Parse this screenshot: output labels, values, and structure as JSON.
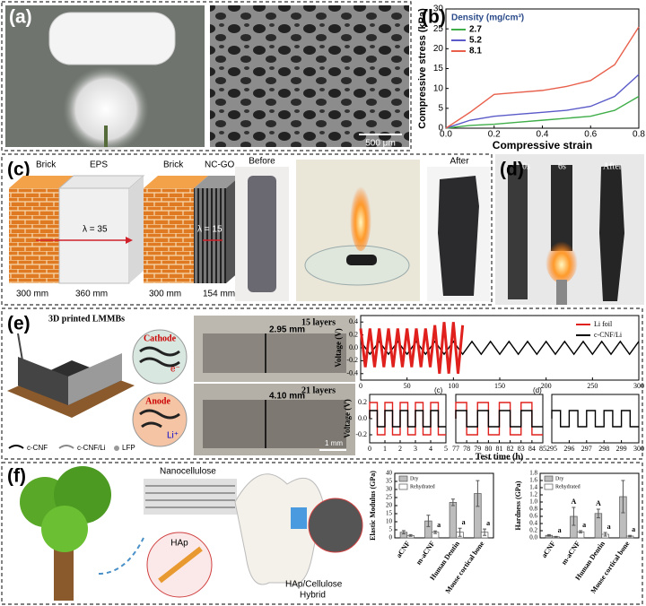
{
  "panels": {
    "a": {
      "label": "(a)",
      "scale_bar": "500 μm"
    },
    "b": {
      "label": "(b)"
    },
    "c": {
      "label": "(c)",
      "brick_1": "Brick",
      "eps": "EPS",
      "lambda_1": "λ = 35",
      "width_1a": "300 mm",
      "width_1b": "360 mm",
      "brick_2": "Brick",
      "ncgo": "NC-GO",
      "lambda_2": "λ = 15",
      "width_2a": "300 mm",
      "width_2b": "154 mm",
      "before": "Before",
      "after": "After"
    },
    "d": {
      "label": "(d)",
      "t0": "0s",
      "t1": "6s",
      "after": "After"
    },
    "e": {
      "label": "(e)",
      "title": "3D printed LMMBs",
      "cathode": "Cathode",
      "anode": "Anode",
      "electron": "e⁻",
      "li_ion": "Li⁺",
      "legend": [
        "c-CNF",
        "c-CNF/Li",
        "LFP"
      ],
      "layers_1": "15 layers",
      "thickness_1": "2.95 mm",
      "layers_2": "21 layers",
      "thickness_2": "4.10 mm",
      "scale_bar": "1 mm",
      "inset_c": "(c)",
      "inset_d": "(d)"
    },
    "f": {
      "label": "(f)",
      "nanocellulose": "Nanocellulose",
      "hap": "HAp",
      "hybrid_1": "HAp/Cellulose",
      "hybrid_2": "Hybrid"
    }
  },
  "chart_data": [
    {
      "type": "line",
      "xlabel": "Compressive strain",
      "ylabel": "Compressive stress (kPa)",
      "legend_title": "Density (mg/cm³)",
      "legend_position": "upper left",
      "x": [
        0,
        0.1,
        0.2,
        0.3,
        0.4,
        0.5,
        0.6,
        0.7,
        0.8
      ],
      "series": [
        {
          "name": "2.7",
          "color": "#3fae49",
          "values": [
            0,
            0.7,
            1,
            1.5,
            2,
            2.5,
            3,
            4.5,
            8
          ]
        },
        {
          "name": "5.2",
          "color": "#5a5ac8",
          "values": [
            0,
            2,
            3,
            3.5,
            4,
            4.5,
            5.5,
            8,
            13.5
          ]
        },
        {
          "name": "8.1",
          "color": "#e8604c",
          "values": [
            0,
            4,
            8.5,
            9,
            9.5,
            10.5,
            12,
            16,
            25.5
          ]
        }
      ],
      "xlim": [
        0,
        0.8
      ],
      "xticks": [
        {
          "value": 0,
          "label": "0.0"
        },
        0.2,
        0.4,
        0.6,
        0.8
      ],
      "ylim": [
        0,
        30
      ],
      "yticks": [
        0,
        5,
        10,
        15,
        20,
        25,
        30
      ]
    },
    {
      "type": "line",
      "ylabel": "Voltage (V)",
      "legend_position": "upper right",
      "series": [
        {
          "name": "c-CNF/Li",
          "color": "#000000",
          "x": [
            0,
            10,
            20,
            30,
            40,
            50,
            60,
            70,
            80,
            90,
            100,
            110,
            120,
            130,
            140,
            150,
            160,
            170,
            180,
            190,
            200,
            210,
            220,
            230,
            240,
            250,
            260,
            270,
            280,
            290,
            300
          ],
          "values": [
            0.1,
            -0.1,
            0.1,
            -0.1,
            0.1,
            -0.1,
            0.1,
            -0.1,
            0.1,
            -0.1,
            0.1,
            -0.1,
            0.1,
            -0.1,
            0.1,
            -0.1,
            0.1,
            -0.1,
            0.1,
            -0.1,
            0.1,
            -0.1,
            0.1,
            -0.1,
            0.1,
            -0.1,
            0.1,
            -0.1,
            0.1,
            -0.1,
            0.1
          ]
        },
        {
          "name": "Li foil",
          "color": "#e0201c",
          "x": [
            0,
            5,
            10,
            15,
            20,
            25,
            30,
            35,
            40,
            45,
            50,
            55,
            60,
            65,
            70,
            75,
            80,
            85,
            90,
            95,
            100,
            105,
            110
          ],
          "values": [
            0.3,
            -0.3,
            0.3,
            -0.3,
            0.3,
            -0.3,
            0.3,
            -0.3,
            0.3,
            -0.3,
            0.3,
            -0.3,
            0.3,
            -0.3,
            0.3,
            -0.3,
            0.35,
            -0.4,
            0.4,
            -0.4,
            0.4,
            -0.4,
            0.35
          ]
        }
      ],
      "xlim": [
        0,
        300
      ],
      "xticks": [
        0,
        50,
        100,
        150,
        200,
        250,
        300
      ],
      "ylim": [
        -0.5,
        0.5
      ],
      "yticks": [
        0.4,
        0.2,
        {
          "value": 0,
          "label": "0.0"
        },
        -0.2,
        -0.4
      ]
    },
    {
      "type": "line",
      "ylabel": "Voltage (V)",
      "x": [
        0,
        0,
        0.5,
        0.5,
        1,
        1,
        1.5,
        1.5,
        2,
        2,
        2.5,
        2.5,
        3,
        3,
        3.5,
        3.5,
        4,
        4,
        4.5,
        4.5,
        5
      ],
      "series": [
        {
          "name": "Li foil",
          "color": "#e0201c",
          "values": [
            0,
            0.2,
            0.2,
            -0.2,
            -0.2,
            0.2,
            0.2,
            -0.2,
            -0.2,
            0.2,
            0.2,
            -0.2,
            -0.2,
            0.2,
            0.2,
            -0.2,
            -0.2,
            0.2,
            0.2,
            -0.2,
            -0.2
          ]
        },
        {
          "name": "c-CNF/Li",
          "color": "#000000",
          "values": [
            0,
            0.1,
            0.1,
            -0.1,
            -0.1,
            0.1,
            0.1,
            -0.1,
            -0.1,
            0.1,
            0.1,
            -0.1,
            -0.1,
            0.1,
            0.1,
            -0.1,
            -0.1,
            0.1,
            0.1,
            -0.1,
            -0.1
          ]
        }
      ],
      "xlim": [
        0,
        5
      ],
      "xticks": [
        0,
        1,
        2,
        3,
        4,
        5
      ],
      "ylim": [
        -0.3,
        0.3
      ],
      "yticks": [
        0.2,
        {
          "value": 0,
          "label": "0.0"
        },
        -0.2
      ]
    },
    {
      "type": "line",
      "xlabel": "Test time (h)",
      "x": [
        77,
        77,
        78,
        78,
        79,
        79,
        80,
        80,
        81,
        81,
        82,
        82,
        83,
        83,
        84,
        84,
        85
      ],
      "series": [
        {
          "name": "Li foil",
          "color": "#e0201c",
          "values": [
            0,
            0.2,
            0.2,
            -0.2,
            -0.2,
            0.2,
            0.2,
            -0.2,
            -0.2,
            0.2,
            0.2,
            -0.2,
            -0.2,
            0.2,
            0.2,
            -0.2,
            -0.2
          ]
        },
        {
          "name": "c-CNF/Li",
          "color": "#000000",
          "values": [
            0,
            0.1,
            0.1,
            -0.1,
            -0.1,
            0.1,
            0.1,
            -0.1,
            -0.1,
            0.1,
            0.1,
            -0.1,
            -0.1,
            0.1,
            0.1,
            -0.1,
            -0.1
          ]
        }
      ],
      "xlim": [
        77,
        85
      ],
      "xticks": [
        77,
        78,
        79,
        80,
        81,
        82,
        83,
        84,
        85
      ],
      "ylim": [
        -0.3,
        0.3
      ]
    },
    {
      "type": "line",
      "x": [
        295,
        295,
        295.5,
        295.5,
        296,
        296,
        296.5,
        296.5,
        297,
        297,
        297.5,
        297.5,
        298,
        298,
        298.5,
        298.5,
        299,
        299,
        299.5,
        299.5,
        300
      ],
      "series": [
        {
          "name": "c-CNF/Li",
          "color": "#000000",
          "values": [
            0,
            0.1,
            0.1,
            -0.1,
            -0.1,
            0.1,
            0.1,
            -0.1,
            -0.1,
            0.1,
            0.1,
            -0.1,
            -0.1,
            0.1,
            0.1,
            -0.1,
            -0.1,
            0.1,
            0.1,
            -0.1,
            -0.1
          ]
        }
      ],
      "xlim": [
        295,
        300
      ],
      "xticks": [
        295,
        296,
        297,
        298,
        299,
        300
      ],
      "ylim": [
        -0.3,
        0.3
      ]
    },
    {
      "type": "bar",
      "ylabel": "Elastic Modulus (GPa)",
      "legend_position": "upper left",
      "categories": [
        "aCNF",
        "m-aCNF",
        "Human Dentin",
        "Mouse cortical bone"
      ],
      "series": [
        {
          "name": "Dry",
          "color": "#bdbdbd",
          "values": [
            3.5,
            10.5,
            22,
            27.5
          ],
          "errors": [
            1,
            3.5,
            2,
            8
          ]
        },
        {
          "name": "Rehydrated",
          "color": "#ffffff",
          "values": [
            1.5,
            3.5,
            3.5,
            3.5
          ],
          "errors": [
            0.5,
            0.8,
            2.5,
            2
          ],
          "letters": [
            null,
            "a",
            "a",
            "a"
          ]
        }
      ],
      "ylim": [
        0,
        40
      ],
      "yticks": [
        0,
        5,
        10,
        15,
        20,
        25,
        30,
        35,
        40
      ]
    },
    {
      "type": "bar",
      "ylabel": "Hardness (GPa)",
      "legend_position": "upper left",
      "categories": [
        "aCNF",
        "m-aCNF",
        "Human Dentin",
        "Mouse cortical bone"
      ],
      "series": [
        {
          "name": "Dry",
          "color": "#bdbdbd",
          "values": [
            0.07,
            0.6,
            0.68,
            1.15
          ],
          "errors": [
            0.02,
            0.25,
            0.12,
            0.45
          ],
          "letters": [
            null,
            "A",
            "A",
            null
          ]
        },
        {
          "name": "Rehydrated",
          "color": "#ffffff",
          "values": [
            0.03,
            0.17,
            0.1,
            0.05
          ],
          "errors": [
            0.01,
            0.03,
            0.05,
            0.02
          ],
          "letters": [
            "a",
            "a",
            "a",
            "a"
          ]
        }
      ],
      "ylim": [
        0,
        1.8
      ],
      "yticks": [
        {
          "value": 0,
          "label": "0.0"
        },
        0.2,
        0.4,
        0.6,
        0.8,
        {
          "value": 1,
          "label": "1.0"
        },
        1.2,
        1.4,
        1.6,
        1.8
      ]
    }
  ]
}
